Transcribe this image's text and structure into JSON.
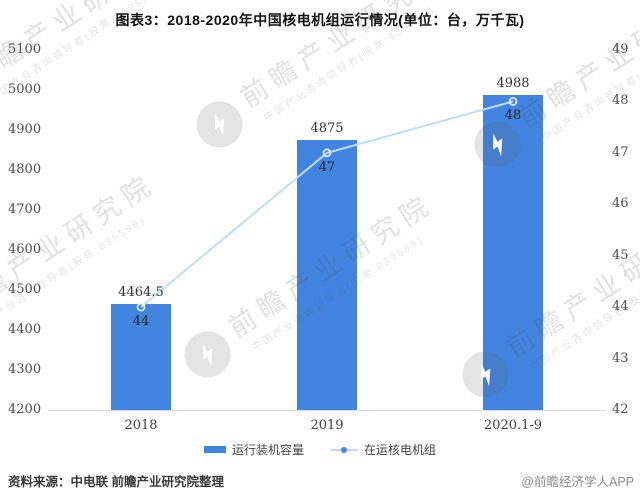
{
  "title": "图表3：2018-2020年中国核电机组运行情况(单位：台，万千瓦)",
  "chart_data": {
    "type": "bar",
    "combo": "bar+line",
    "categories": [
      "2018",
      "2019",
      "2020.1-9"
    ],
    "series": [
      {
        "name": "运行装机容量",
        "type": "bar",
        "axis": "left",
        "values": [
          4464.5,
          4875,
          4988
        ],
        "labels": [
          "4464.5",
          "4875",
          "4988"
        ],
        "color": "#4285E0"
      },
      {
        "name": "在运核电机组",
        "type": "line",
        "axis": "right",
        "values": [
          44,
          47,
          48
        ],
        "labels": [
          "44",
          "47",
          "48"
        ],
        "color": "#BFDDF6",
        "marker": "hollow-circle"
      }
    ],
    "left_axis": {
      "min": 4200,
      "max": 5100,
      "step": 100,
      "ticks": [
        5100,
        5000,
        4900,
        4800,
        4700,
        4600,
        4500,
        4400,
        4300,
        4200
      ]
    },
    "right_axis": {
      "min": 42,
      "max": 49,
      "step": 1,
      "ticks": [
        49,
        48,
        47,
        46,
        45,
        44,
        43,
        42
      ]
    },
    "grid": false,
    "legend_position": "bottom"
  },
  "legend": {
    "items": [
      {
        "label": "运行装机容量",
        "type": "bar",
        "color": "#4285E0"
      },
      {
        "label": "在运核电机组",
        "type": "line",
        "color": "#BFDDF6",
        "dot_color": "#4285E0"
      }
    ]
  },
  "watermark": {
    "text": "前瞻产业研究院",
    "subtext": "中国产业咨询领导者(股票:839599)"
  },
  "footer": {
    "source": "资料来源：中电联 前瞻产业研究院整理",
    "credit": "@前瞻经济学人APP"
  },
  "colors": {
    "bar": "#4285E0",
    "line": "#BFDDF6",
    "marker_stroke": "#EAF3FC",
    "axis_line": "#D9D9D9"
  }
}
